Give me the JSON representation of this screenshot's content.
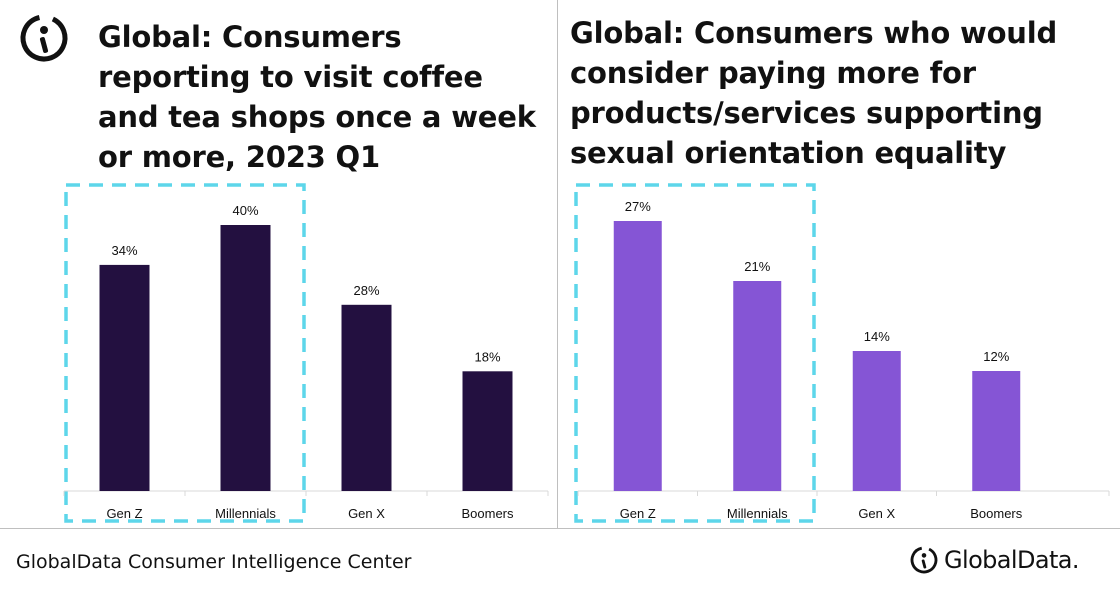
{
  "header": {
    "left_title": "Global: Consumers reporting to visit coffee and tea shops once a week or more, 2023 Q1",
    "right_title": "Global: Consumers who would consider paying more for products/services supporting sexual orientation equality"
  },
  "footer": {
    "source": "GlobalData Consumer Intelligence Center",
    "brand": "GlobalData."
  },
  "colors": {
    "left_bar": "#231040",
    "right_bar": "#8555d5",
    "highlight": "#5dd6ea",
    "axis": "#d9d9d9"
  },
  "chart_data": [
    {
      "type": "bar",
      "title": "Global: Consumers reporting to visit coffee and tea shops once a week or more, 2023 Q1",
      "categories": [
        "Gen Z",
        "Millennials",
        "Gen X",
        "Boomers"
      ],
      "values": [
        34,
        40,
        28,
        18
      ],
      "data_labels": [
        "34%",
        "40%",
        "28%",
        "18%"
      ],
      "unit": "%",
      "ylim": [
        0,
        40
      ],
      "grid": false,
      "highlighted_categories": [
        "Gen Z",
        "Millennials"
      ]
    },
    {
      "type": "bar",
      "title": "Global: Consumers who would consider paying more for products/services supporting sexual orientation equality",
      "categories": [
        "Gen Z",
        "Millennials",
        "Gen X",
        "Boomers"
      ],
      "values": [
        27,
        21,
        14,
        12
      ],
      "data_labels": [
        "27%",
        "21%",
        "14%",
        "12%"
      ],
      "unit": "%",
      "ylim": [
        0,
        27
      ],
      "grid": false,
      "highlighted_categories": [
        "Gen Z",
        "Millennials"
      ]
    }
  ]
}
